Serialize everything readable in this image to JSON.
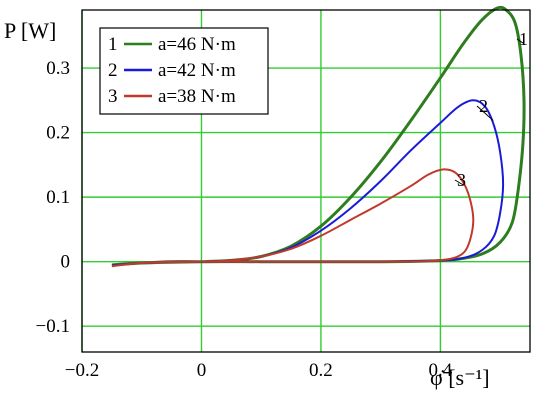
{
  "chart_data": {
    "type": "line",
    "title": "",
    "xlabel": "φ̇ [s⁻¹]",
    "ylabel": "P [W]",
    "xlim": [
      -0.2,
      0.55
    ],
    "ylim": [
      -0.14,
      0.39
    ],
    "grid": true,
    "legend_placement": "top-left",
    "xticks": [
      {
        "value": -0.2,
        "label": "−0.2"
      },
      {
        "value": 0,
        "label": "0"
      },
      {
        "value": 0.2,
        "label": "0.2"
      },
      {
        "value": 0.4,
        "label": "0.4"
      }
    ],
    "yticks": [
      {
        "value": -0.1,
        "label": "−0.1"
      },
      {
        "value": 0,
        "label": "0"
      },
      {
        "value": 0.1,
        "label": "0.1"
      },
      {
        "value": 0.2,
        "label": "0.2"
      },
      {
        "value": 0.3,
        "label": "0.3"
      }
    ],
    "grid_color": "#33cc33",
    "series": [
      {
        "id": "1",
        "name": "a=46 N·m",
        "legend_number": "1",
        "curve_label": "1",
        "color": "#2e7d1e",
        "points": [
          [
            -0.15,
            -0.005
          ],
          [
            -0.1,
            -0.002
          ],
          [
            -0.05,
            0.0
          ],
          [
            0.0,
            0.0
          ],
          [
            0.05,
            0.002
          ],
          [
            0.1,
            0.008
          ],
          [
            0.15,
            0.024
          ],
          [
            0.2,
            0.055
          ],
          [
            0.25,
            0.1
          ],
          [
            0.3,
            0.155
          ],
          [
            0.35,
            0.218
          ],
          [
            0.4,
            0.285
          ],
          [
            0.44,
            0.34
          ],
          [
            0.47,
            0.375
          ],
          [
            0.495,
            0.393
          ],
          [
            0.51,
            0.39
          ],
          [
            0.525,
            0.37
          ],
          [
            0.535,
            0.32
          ],
          [
            0.54,
            0.25
          ],
          [
            0.538,
            0.18
          ],
          [
            0.53,
            0.11
          ],
          [
            0.52,
            0.06
          ],
          [
            0.5,
            0.03
          ],
          [
            0.47,
            0.012
          ],
          [
            0.43,
            0.004
          ],
          [
            0.38,
            0.001
          ],
          [
            0.3,
            0.0
          ],
          [
            0.2,
            0.0
          ],
          [
            0.1,
            0.0
          ],
          [
            0.0,
            0.0
          ],
          [
            -0.1,
            -0.002
          ],
          [
            -0.15,
            -0.005
          ]
        ]
      },
      {
        "id": "2",
        "name": "a=42 N·m",
        "legend_number": "2",
        "curve_label": "2",
        "color": "#1a1ad9",
        "points": [
          [
            -0.15,
            -0.006
          ],
          [
            -0.1,
            -0.002
          ],
          [
            -0.05,
            0.0
          ],
          [
            0.0,
            0.0
          ],
          [
            0.05,
            0.002
          ],
          [
            0.1,
            0.008
          ],
          [
            0.15,
            0.022
          ],
          [
            0.2,
            0.048
          ],
          [
            0.25,
            0.083
          ],
          [
            0.3,
            0.125
          ],
          [
            0.35,
            0.172
          ],
          [
            0.4,
            0.215
          ],
          [
            0.43,
            0.24
          ],
          [
            0.455,
            0.25
          ],
          [
            0.475,
            0.24
          ],
          [
            0.49,
            0.21
          ],
          [
            0.5,
            0.17
          ],
          [
            0.505,
            0.12
          ],
          [
            0.5,
            0.075
          ],
          [
            0.49,
            0.04
          ],
          [
            0.47,
            0.018
          ],
          [
            0.44,
            0.006
          ],
          [
            0.4,
            0.002
          ],
          [
            0.3,
            0.0
          ],
          [
            0.2,
            0.0
          ],
          [
            0.1,
            0.0
          ],
          [
            0.0,
            0.0
          ],
          [
            -0.1,
            -0.002
          ],
          [
            -0.15,
            -0.006
          ]
        ]
      },
      {
        "id": "3",
        "name": "a=38 N·m",
        "legend_number": "3",
        "curve_label": "3",
        "color": "#c0392b",
        "points": [
          [
            -0.15,
            -0.007
          ],
          [
            -0.1,
            -0.002
          ],
          [
            -0.05,
            0.0
          ],
          [
            0.0,
            0.0
          ],
          [
            0.05,
            0.002
          ],
          [
            0.1,
            0.008
          ],
          [
            0.15,
            0.02
          ],
          [
            0.2,
            0.04
          ],
          [
            0.25,
            0.065
          ],
          [
            0.3,
            0.09
          ],
          [
            0.35,
            0.117
          ],
          [
            0.38,
            0.135
          ],
          [
            0.405,
            0.143
          ],
          [
            0.425,
            0.138
          ],
          [
            0.44,
            0.12
          ],
          [
            0.45,
            0.095
          ],
          [
            0.455,
            0.065
          ],
          [
            0.45,
            0.035
          ],
          [
            0.44,
            0.015
          ],
          [
            0.42,
            0.005
          ],
          [
            0.38,
            0.001
          ],
          [
            0.3,
            0.0
          ],
          [
            0.2,
            0.0
          ],
          [
            0.1,
            0.0
          ],
          [
            0.0,
            0.0
          ],
          [
            -0.1,
            -0.002
          ],
          [
            -0.15,
            -0.007
          ]
        ]
      }
    ]
  }
}
